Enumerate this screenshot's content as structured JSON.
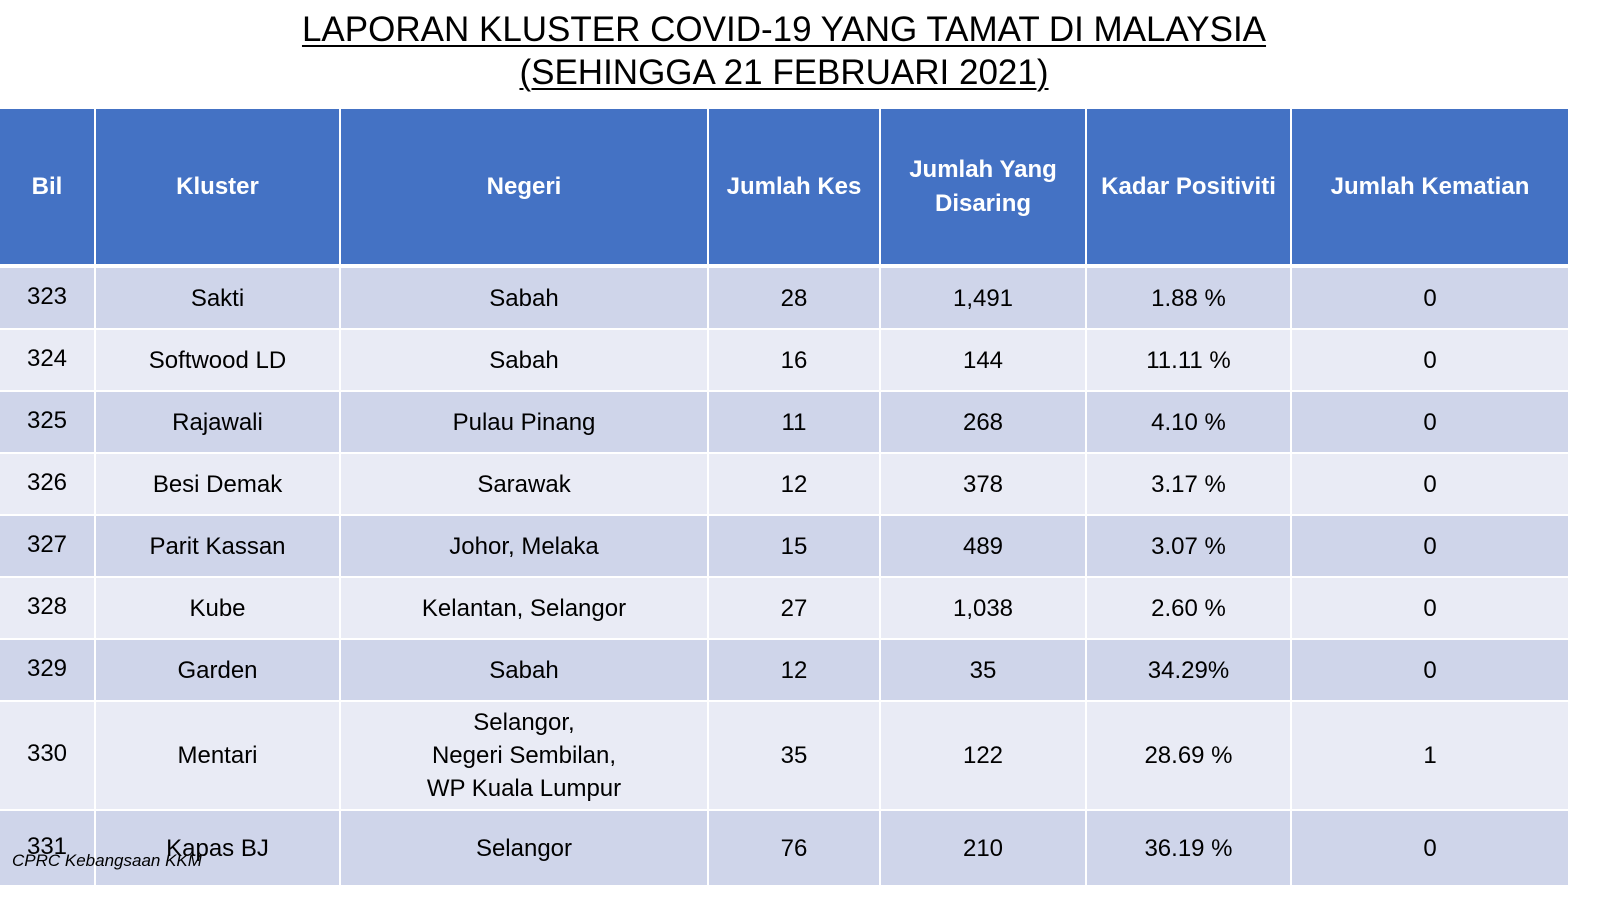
{
  "title": {
    "line1": "LAPORAN KLUSTER COVID-19 YANG TAMAT DI MALAYSIA",
    "line2": "(SEHINGGA 21 FEBRUARI 2021)"
  },
  "table": {
    "headers": {
      "bil": "Bil",
      "kluster": "Kluster",
      "negeri": "Negeri",
      "jumlah_kes": "Jumlah Kes",
      "jumlah_disaring_1": "Jumlah Yang",
      "jumlah_disaring_2": "Disaring",
      "kadar_positiviti": "Kadar Positiviti",
      "jumlah_kematian": "Jumlah Kematian"
    },
    "rows": [
      {
        "bil": "323",
        "kluster": "Sakti",
        "negeri": [
          "Sabah"
        ],
        "kes": "28",
        "disaring": "1,491",
        "kadar": "1.88 %",
        "kematian": "0"
      },
      {
        "bil": "324",
        "kluster": "Softwood LD",
        "negeri": [
          "Sabah"
        ],
        "kes": "16",
        "disaring": "144",
        "kadar": "11.11 %",
        "kematian": "0"
      },
      {
        "bil": "325",
        "kluster": "Rajawali",
        "negeri": [
          "Pulau Pinang"
        ],
        "kes": "11",
        "disaring": "268",
        "kadar": "4.10 %",
        "kematian": "0"
      },
      {
        "bil": "326",
        "kluster": "Besi Demak",
        "negeri": [
          "Sarawak"
        ],
        "kes": "12",
        "disaring": "378",
        "kadar": "3.17 %",
        "kematian": "0"
      },
      {
        "bil": "327",
        "kluster": "Parit Kassan",
        "negeri": [
          "Johor, Melaka"
        ],
        "kes": "15",
        "disaring": "489",
        "kadar": "3.07 %",
        "kematian": "0"
      },
      {
        "bil": "328",
        "kluster": "Kube",
        "negeri": [
          "Kelantan, Selangor"
        ],
        "kes": "27",
        "disaring": "1,038",
        "kadar": "2.60 %",
        "kematian": "0"
      },
      {
        "bil": "329",
        "kluster": "Garden",
        "negeri": [
          "Sabah"
        ],
        "kes": "12",
        "disaring": "35",
        "kadar": "34.29%",
        "kematian": "0"
      },
      {
        "bil": "330",
        "kluster": "Mentari",
        "negeri": [
          "Selangor,",
          "Negeri Sembilan,",
          "WP Kuala Lumpur"
        ],
        "kes": "35",
        "disaring": "122",
        "kadar": "28.69 %",
        "kematian": "1"
      },
      {
        "bil": "331",
        "kluster": "Kapas BJ",
        "negeri": [
          "Selangor"
        ],
        "kes": "76",
        "disaring": "210",
        "kadar": "36.19 %",
        "kematian": "0"
      }
    ]
  },
  "footer": "CPRC Kebangsaan KKM",
  "colors": {
    "header_bg": "#4472c4",
    "row_odd": "#cfd5ea",
    "row_even": "#e9ebf5"
  }
}
